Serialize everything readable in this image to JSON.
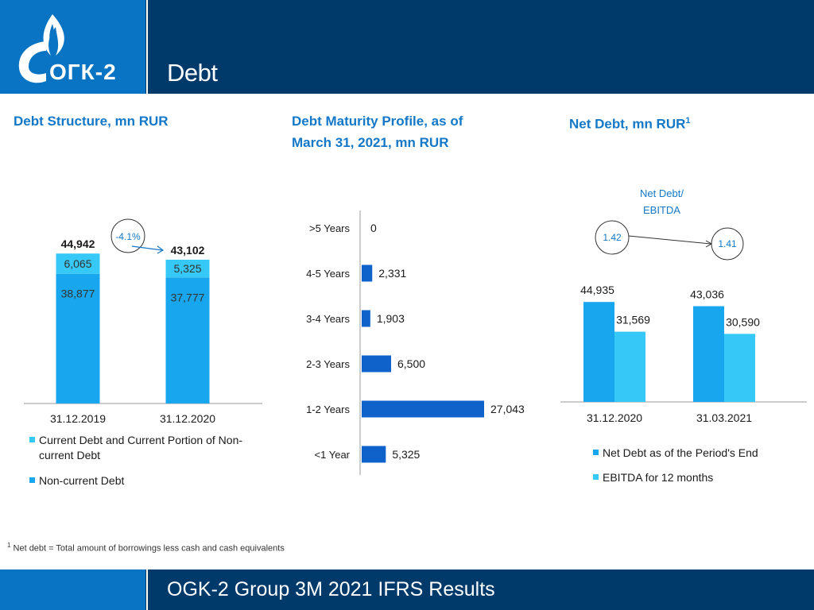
{
  "header": {
    "title": "Debt",
    "logo_text": "ОГК-2"
  },
  "footer": {
    "text": "OGK-2 Group 3M 2021 IFRS Results"
  },
  "footnote": {
    "marker": "1",
    "text": "Net debt = Total amount of borrowings less cash and cash equivalents"
  },
  "sections": {
    "structure_title": "Debt Structure, mn RUR",
    "maturity_title_line1": "Debt Maturity Profile, as of",
    "maturity_title_line2": "March 31, 2021, mn RUR",
    "net_title": "Net Debt, mn RUR",
    "net_title_sup": "1"
  },
  "colors": {
    "dark_blue": "#0a74c4",
    "bright_blue": "#18a6ee",
    "light_blue": "#36c8f6",
    "bar_blue": "#0f62c9",
    "header": "#003a6b"
  },
  "chart_data": [
    {
      "type": "bar",
      "stacked": true,
      "title": "Debt Structure, mn RUR",
      "categories": [
        "31.12.2019",
        "31.12.2020"
      ],
      "category_labels": [
        "31.12.2019",
        "31.12.2020"
      ],
      "series": [
        {
          "name": "Non-current Debt",
          "values": [
            38877,
            37777
          ],
          "labels": [
            "38,877",
            "37,777"
          ]
        },
        {
          "name": "Current Debt and Current Portion of Non-current Debt",
          "values": [
            6065,
            5325
          ],
          "labels": [
            "6,065",
            "5,325"
          ]
        }
      ],
      "totals": [
        44942,
        43102
      ],
      "total_labels": [
        "44,942",
        "43,102"
      ],
      "change_label": "-4.1%",
      "legend": [
        "Current Debt and Current Portion of Non-",
        "current Debt",
        "Non-current Debt"
      ],
      "ylim": [
        0,
        50000
      ]
    },
    {
      "type": "bar",
      "orientation": "horizontal",
      "title": "Debt Maturity Profile, as of March 31, 2021, mn RUR",
      "categories": [
        ">5 Years",
        "4-5 Years",
        "3-4 Years",
        "2-3 Years",
        "1-2 Years",
        "<1 Year"
      ],
      "values": [
        0,
        2331,
        1903,
        6500,
        27043,
        5325
      ],
      "value_labels": [
        "0",
        "2,331",
        "1,903",
        "6,500",
        "27,043",
        "5,325"
      ],
      "xlim": [
        0,
        27043
      ]
    },
    {
      "type": "bar",
      "title": "Net Debt, mn RUR",
      "categories": [
        "31.12.2020",
        "31.03.2021"
      ],
      "series": [
        {
          "name": "Net Debt as of the Period's End",
          "values": [
            44935,
            43036
          ],
          "labels": [
            "44,935",
            "43,036"
          ]
        },
        {
          "name": "EBITDA for 12 months",
          "values": [
            31569,
            30590
          ],
          "labels": [
            "31,569",
            "30,590"
          ]
        }
      ],
      "ratio_title": [
        "Net Debt/",
        "EBITDA"
      ],
      "ratios": [
        1.42,
        1.41
      ],
      "ratio_labels": [
        "1.42",
        "1.41"
      ],
      "ylim": [
        0,
        50000
      ]
    }
  ]
}
